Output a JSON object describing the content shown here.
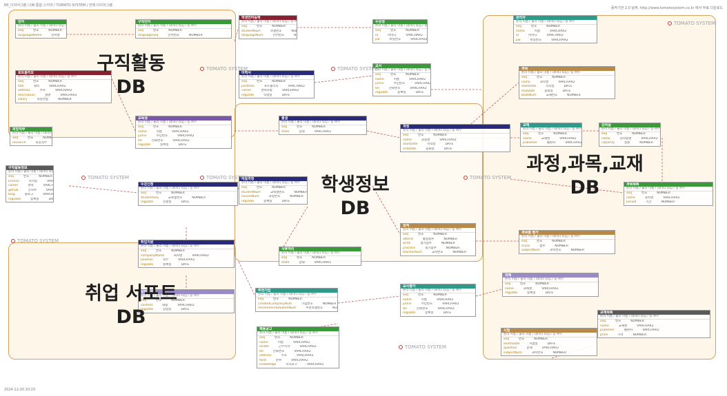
{
  "header": {
    "path": "ER_다이어그램 / DB 통합 스키마 / TOMATO SYSTEM / 전체 다이어그램",
    "right_note": "동작기반 2.0 날짜, http://www.tomatosystem.co.kr 에서 무료 다운로드"
  },
  "footer": {
    "date": "2024-12-20 20:23"
  },
  "watermark": "TOMATO SYSTEM",
  "regions": [
    {
      "id": "job",
      "label": "구직활동\nDB"
    },
    {
      "id": "student",
      "label": "학생정보\nDB"
    },
    {
      "id": "course",
      "label": "과정,과목,교재\nDB"
    },
    {
      "id": "support",
      "label": "취업 서포트\nDB"
    }
  ],
  "colors": {
    "green": "#3a9a3a",
    "maroon": "#8a1f2e",
    "navy": "#2a2a7a",
    "purple": "#7a58a8",
    "teal": "#2e9a8a",
    "tan": "#b88a4a",
    "gray": "#5a5a5a",
    "lavender": "#9a8ac8",
    "region_fill": "#fadfb0",
    "region_border": "#d4a25a",
    "relation": "#c05a5a"
  },
  "entities": [
    {
      "title": "언어",
      "color": "green",
      "cols": "논리 이름 / 물리 이름 / 데이터 타입 / 널 여부",
      "rows": [
        [
          "seq",
          "번호",
          "NUMBER"
        ],
        [
          "languageName",
          "언어명",
          "VARCHAR2"
        ]
      ]
    },
    {
      "title": "구직언어",
      "color": "green",
      "cols": "논리 이름 / 물리 이름 / 데이터 타입 / 널 여부",
      "rows": [
        [
          "seq",
          "번호",
          "NUMBER"
        ],
        [
          "languageSeq",
          "언어번호",
          "NUMBER"
        ]
      ]
    },
    {
      "title": "포트폴리오",
      "color": "maroon",
      "cols": "논리 이름 / 물리 이름 / 데이터 타입 / 널 여부",
      "rows": [
        [
          "seq",
          "번호",
          "NUMBER"
        ],
        [
          "title",
          "제목",
          "VARCHAR2"
        ],
        [
          "address",
          "주소",
          "VARCHAR2"
        ],
        [
          "description",
          "설명",
          "VARCHAR2"
        ],
        [
          "salary",
          "희망연봉",
          "NUMBER"
        ]
      ]
    },
    {
      "title": "학생언어능력",
      "color": "maroon",
      "cols": "논리 이름 / 물리 이름 / 데이터 타입 / 널 여부",
      "rows": [
        [
          "seq",
          "번호",
          "NUMBER"
        ],
        [
          "studentNum",
          "학생번호",
          "NUMBER"
        ],
        [
          "languageNum",
          "언어번호",
          "NUMBER"
        ]
      ]
    },
    {
      "title": "수강생",
      "color": "green",
      "cols": "논리 이름 / 물리 이름 / 데이터 타입 / 널 여부",
      "rows": [
        [
          "seq",
          "번호",
          "NUMBER"
        ],
        [
          "id",
          "아이디",
          "VARCHAR2"
        ],
        [
          "pw",
          "비밀번호",
          "VARCHAR2"
        ]
      ]
    },
    {
      "title": "관리자",
      "color": "teal",
      "cols": "논리 이름 / 물리 이름 / 데이터 타입 / 널 여부",
      "rows": [
        [
          "seq",
          "번호",
          "NUMBER"
        ],
        [
          "name",
          "이름",
          "VARCHAR2"
        ],
        [
          "id",
          "아이디",
          "VARCHAR2"
        ],
        [
          "pw",
          "비밀번호",
          "VARCHAR2"
        ]
      ]
    },
    {
      "title": "이력서",
      "color": "navy",
      "cols": "논리 이름 / 물리 이름 / 데이터 타입 / 널 여부",
      "rows": [
        [
          "seq",
          "번호",
          "NUMBER"
        ],
        [
          "portfolio",
          "포트폴리오",
          "VARCHAR2"
        ],
        [
          "career",
          "경력사항",
          "VARCHAR2"
        ],
        [
          "regDate",
          "작성일",
          "DATE"
        ]
      ]
    },
    {
      "title": "교사",
      "color": "green",
      "cols": "논리 이름 / 물리 이름 / 데이터 타입 / 널 여부",
      "rows": [
        [
          "seq",
          "번호",
          "NUMBER"
        ],
        [
          "name",
          "이름",
          "VARCHAR2"
        ],
        [
          "jumin",
          "주민번호",
          "VARCHAR2"
        ],
        [
          "tel",
          "전화번호",
          "VARCHAR2"
        ],
        [
          "regDate",
          "등록일",
          "DATE"
        ]
      ]
    },
    {
      "title": "희망직무",
      "color": "green",
      "cols": "논리 이름 / 물리 이름 / 데이터 타입 / 널 여부",
      "rows": [
        [
          "seq",
          "번호",
          "NUMBER"
        ],
        [
          "research",
          "희망직무",
          "VARCHAR2"
        ]
      ]
    },
    {
      "title": "구직활동정보",
      "color": "gray",
      "cols": "논리 이름 / 물리 이름 / 데이터 타입 / 널 여부",
      "rows": [
        [
          "seq",
          "번호",
          "NUMBER"
        ],
        [
          "license",
          "자격증",
          "VARCHAR2"
        ],
        [
          "career",
          "경력",
          "VARCHAR2"
        ],
        [
          "github",
          "깃허브",
          "VARCHAR2"
        ],
        [
          "blog",
          "블로그",
          "VARCHAR2"
        ],
        [
          "regDate",
          "등록일",
          "DATE"
        ]
      ]
    },
    {
      "title": "교육생",
      "color": "purple",
      "cols": "논리 이름 / 물리 이름 / 데이터 타입 / 널 여부",
      "rows": [
        [
          "seq",
          "번호",
          "NUMBER"
        ],
        [
          "name",
          "이름",
          "VARCHAR2"
        ],
        [
          "jumin",
          "주민번호",
          "VARCHAR2"
        ],
        [
          "tel",
          "전화번호",
          "VARCHAR2"
        ],
        [
          "regDate",
          "등록일",
          "DATE"
        ]
      ]
    },
    {
      "title": "출결",
      "color": "navy",
      "cols": "논리 이름 / 물리 이름 / 데이터 타입 / 널 여부",
      "rows": [
        [
          "seq",
          "번호",
          "NUMBER"
        ],
        [
          "state",
          "상태",
          "VARCHAR2"
        ]
      ]
    },
    {
      "title": "개설과정",
      "color": "navy",
      "cols": "논리 이름 / 물리 이름 / 데이터 타입 / 널 여부",
      "rows": [
        [
          "seq",
          "번호",
          "NUMBER"
        ],
        [
          "studentNum",
          "교육생번호",
          "NUMBER"
        ],
        [
          "courseNum",
          "과정번호",
          "NUMBER"
        ],
        [
          "regDate",
          "등록일",
          "DATE"
        ]
      ]
    },
    {
      "title": "수강신청",
      "color": "navy",
      "cols": "논리 이름 / 물리 이름 / 데이터 타입 / 널 여부",
      "rows": [
        [
          "seq",
          "번호",
          "NUMBER"
        ],
        [
          "studentSeq",
          "교육생번호",
          "NUMBER"
        ],
        [
          "regDate",
          "신청일",
          "DATE"
        ]
      ]
    },
    {
      "title": "과정",
      "color": "navy",
      "cols": "논리 이름 / 물리 이름 / 데이터 타입 / 널 여부",
      "rows": [
        [
          "seq",
          "번호",
          "NUMBER"
        ],
        [
          "name",
          "과정명",
          "VARCHAR2"
        ],
        [
          "startDate",
          "시작일",
          "DATE"
        ],
        [
          "endDate",
          "종료일",
          "DATE"
        ]
      ]
    },
    {
      "title": "과목",
      "color": "tan",
      "cols": "논리 이름 / 물리 이름 / 데이터 타입 / 널 여부",
      "rows": [
        [
          "seq",
          "번호",
          "NUMBER"
        ],
        [
          "name",
          "과목명",
          "VARCHAR2"
        ],
        [
          "startDate",
          "시작일",
          "DATE"
        ],
        [
          "endDate",
          "종료일",
          "DATE"
        ],
        [
          "bookNum",
          "교재번호",
          "NUMBER"
        ]
      ]
    },
    {
      "title": "교재",
      "color": "teal",
      "cols": "논리 이름 / 물리 이름 / 데이터 타입 / 널 여부",
      "rows": [
        [
          "seq",
          "번호",
          "NUMBER"
        ],
        [
          "name",
          "교재명",
          "VARCHAR2"
        ],
        [
          "publisher",
          "출판사",
          "VARCHAR2"
        ]
      ]
    },
    {
      "title": "성적",
      "color": "tan",
      "cols": "논리 이름 / 물리 이름 / 데이터 타입 / 널 여부",
      "rows": [
        [
          "seq",
          "번호",
          "NUMBER"
        ],
        [
          "attend",
          "출결점수",
          "NUMBER"
        ],
        [
          "write",
          "필기점수",
          "NUMBER"
        ],
        [
          "practice",
          "실기점수",
          "NUMBER"
        ],
        [
          "teacherNum",
          "교사번호",
          "NUMBER"
        ]
      ]
    },
    {
      "title": "과목목록",
      "color": "green",
      "cols": "논리 이름 / 물리 이름 / 데이터 타입 / 널 여부",
      "rows": [
        [
          "seq",
          "번호",
          "NUMBER"
        ],
        [
          "name",
          "과목명",
          "VARCHAR2"
        ],
        [
          "period",
          "기간",
          "NUMBER"
        ]
      ]
    },
    {
      "title": "강의실",
      "color": "green",
      "cols": "논리 이름 / 물리 이름 / 데이터 타입 / 널 여부",
      "rows": [
        [
          "seq",
          "번호",
          "NUMBER"
        ],
        [
          "name",
          "강의실명",
          "VARCHAR2"
        ],
        [
          "capacity",
          "정원",
          "NUMBER"
        ]
      ]
    },
    {
      "title": "취업지원",
      "color": "navy",
      "cols": "논리 이름 / 물리 이름 / 데이터 타입 / 널 여부",
      "rows": [
        [
          "seq",
          "번호",
          "NUMBER"
        ],
        [
          "companyName",
          "회사명",
          "VARCHAR2"
        ],
        [
          "position",
          "직무",
          "VARCHAR2"
        ],
        [
          "regDate",
          "등록일",
          "DATE"
        ]
      ]
    },
    {
      "title": "상담일지",
      "color": "lavender",
      "cols": "논리 이름 / 물리 이름 / 데이터 타입 / 널 여부",
      "rows": [
        [
          "seq",
          "번호",
          "NUMBER"
        ],
        [
          "content",
          "내용",
          "VARCHAR2"
        ],
        [
          "regDate",
          "상담일",
          "DATE"
        ]
      ]
    },
    {
      "title": "사후처리",
      "color": "green",
      "cols": "논리 이름 / 물리 이름 / 데이터 타입 / 널 여부",
      "rows": [
        [
          "seq",
          "번호",
          "NUMBER"
        ],
        [
          "state",
          "상태",
          "VARCHAR2"
        ]
      ]
    },
    {
      "title": "추천기업",
      "color": "teal",
      "cols": "논리 이름 / 물리 이름 / 데이터 타입 / 널 여부",
      "rows": [
        [
          "seq",
          "번호",
          "NUMBER"
        ],
        [
          "createdCompanyNum",
          "기업번호",
          "NUMBER"
        ],
        [
          "recommendStudentNum",
          "추천학생번호",
          "NUMBER"
        ]
      ]
    },
    {
      "title": "교사평가",
      "color": "teal",
      "cols": "논리 이름 / 물리 이름 / 데이터 타입 / 널 여부",
      "rows": [
        [
          "seq",
          "번호",
          "NUMBER"
        ],
        [
          "name",
          "이름",
          "VARCHAR2"
        ],
        [
          "jumin",
          "주민번호",
          "VARCHAR2"
        ],
        [
          "tel",
          "전화번호",
          "VARCHAR2"
        ],
        [
          "regDate",
          "등록일",
          "DATE"
        ]
      ]
    },
    {
      "title": "채용공고",
      "color": "green",
      "cols": "논리 이름 / 물리 이름 / 데이터 타입 / 널 여부",
      "rows": [
        [
          "seq",
          "번호",
          "NUMBER"
        ],
        [
          "name",
          "이름",
          "VARCHAR2"
        ],
        [
          "locate",
          "근무지역",
          "VARCHAR2"
        ],
        [
          "tel",
          "전화번호",
          "VARCHAR2"
        ],
        [
          "address",
          "주소",
          "VARCHAR2"
        ],
        [
          "field",
          "분야",
          "VARCHAR2"
        ],
        [
          "knowledge",
          "지식요구",
          "VARCHAR2"
        ]
      ]
    },
    {
      "title": "과제",
      "color": "lavender",
      "cols": "논리 이름 / 물리 이름 / 데이터 타입 / 널 여부",
      "rows": [
        [
          "seq",
          "번호",
          "NUMBER"
        ],
        [
          "name",
          "과제명",
          "VARCHAR2"
        ],
        [
          "regDate",
          "등록일",
          "DATE"
        ]
      ]
    },
    {
      "title": "과목별 평가",
      "color": "tan",
      "cols": "논리 이름 / 물리 이름 / 데이터 타입 / 널 여부",
      "rows": [
        [
          "seq",
          "번호",
          "NUMBER"
        ],
        [
          "score",
          "점수",
          "NUMBER"
        ],
        [
          "subjectNum",
          "과목번호",
          "NUMBER"
        ]
      ]
    },
    {
      "title": "교재목록",
      "color": "gray",
      "cols": "논리 이름 / 물리 이름 / 데이터 타입 / 널 여부",
      "rows": [
        [
          "seq",
          "번호",
          "NUMBER"
        ],
        [
          "name",
          "교재명",
          "VARCHAR2"
        ],
        [
          "publisher",
          "출판사",
          "VARCHAR2"
        ],
        [
          "price",
          "가격",
          "NUMBER"
        ]
      ]
    },
    {
      "title": "시험",
      "color": "tan",
      "cols": "논리 이름 / 물리 이름 / 데이터 타입 / 널 여부",
      "rows": [
        [
          "seq",
          "번호",
          "NUMBER"
        ],
        [
          "examDate",
          "시험일",
          "DATE"
        ],
        [
          "question",
          "문제",
          "VARCHAR2"
        ],
        [
          "subjectNum",
          "과목번호",
          "NUMBER"
        ]
      ]
    }
  ]
}
